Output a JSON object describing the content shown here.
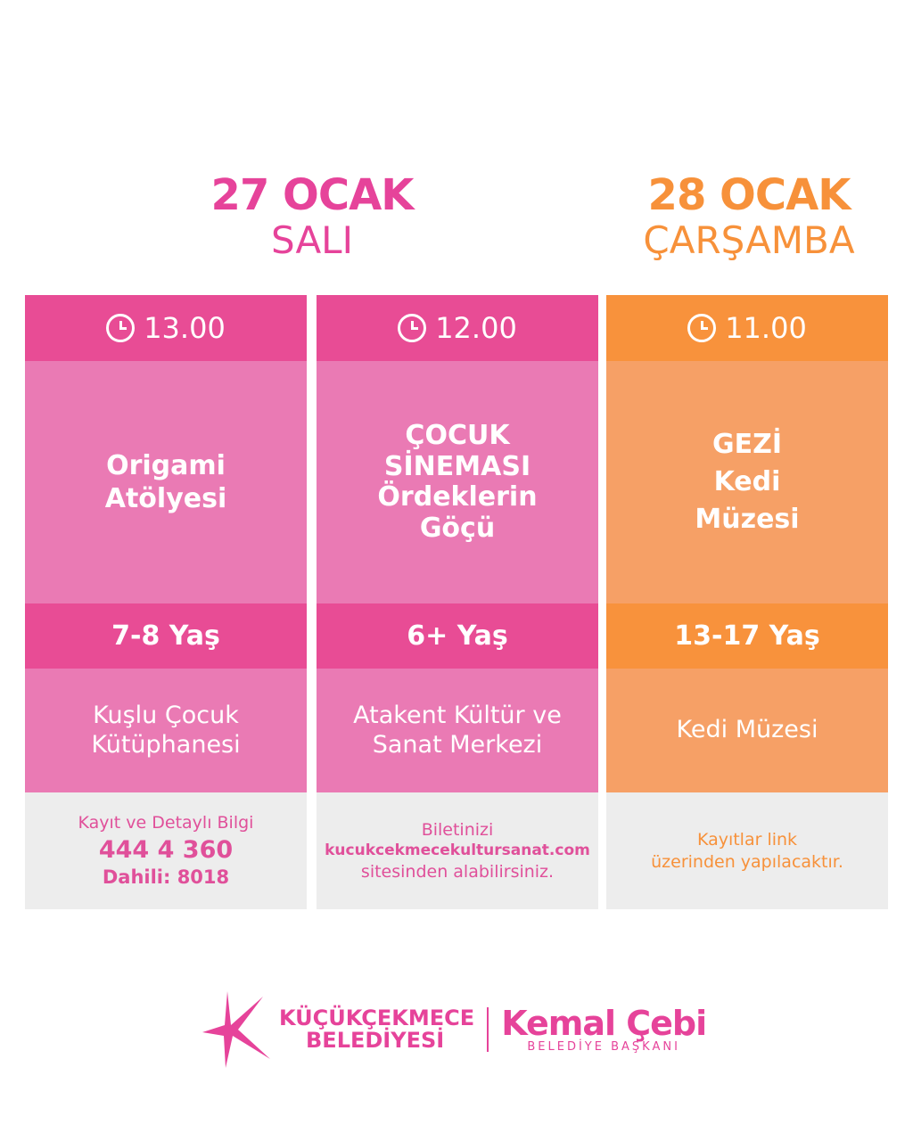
{
  "dates": [
    {
      "date": "27 OCAK",
      "day": "SALI",
      "color": "#e6439a"
    },
    {
      "date": "28 OCAK",
      "day": "ÇARŞAMBA",
      "color": "#f7913a"
    }
  ],
  "events": [
    {
      "time": "13.00",
      "title": [
        "Origami",
        "Atölyesi"
      ],
      "age": "7-8 Yaş",
      "location": [
        "Kuşlu Çocuk",
        "Kütüphanesi"
      ],
      "info": [
        "Kayıt ve Detaylı Bilgi",
        "444 4 360",
        "Dahili: 8018"
      ]
    },
    {
      "time": "12.00",
      "title": [
        "ÇOCUK",
        "SİNEMASI",
        "Ördeklerin",
        "Göçü"
      ],
      "age": "6+ Yaş",
      "location": [
        "Atakent Kültür ve",
        "Sanat Merkezi"
      ],
      "info": [
        "Biletinizi",
        "kucukcekmecekultursanat.com",
        "sitesinden alabilirsiniz."
      ]
    },
    {
      "time": "11.00",
      "title": [
        "GEZİ",
        "Kedi",
        "Müzesi"
      ],
      "age": "13-17 Yaş",
      "location": [
        "Kedi Müzesi"
      ],
      "info": [
        "Kayıtlar link",
        "üzerinden yapılacaktır."
      ]
    }
  ],
  "footer": {
    "org": [
      "KÜÇÜKÇEKMECE",
      "BELEDİYESİ"
    ],
    "name": "Kemal Çebi",
    "title": "BELEDİYE BAŞKANI"
  },
  "colors": {
    "pink": "#e84c95",
    "pink_light": "#ea7ab4",
    "orange": "#f8923c",
    "orange_light": "#f6a066",
    "gray": "#ededed"
  }
}
